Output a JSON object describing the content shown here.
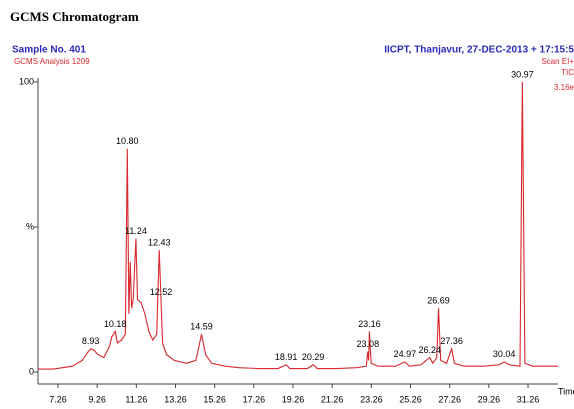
{
  "chart_data": {
    "type": "line",
    "title": "GCMS Chromatogram",
    "sample": "Sample No. 401",
    "analysis": "GCMS Analysis 1209",
    "source": "IICPT, Thanjavur,  27-DEC-2013 + 17:15:5",
    "scan": "Scan EI+",
    "tic": "TIC",
    "intensity": "3.16e",
    "xlabel": "Time",
    "x": [
      6.24,
      7.0,
      7.5,
      8.0,
      8.5,
      8.8,
      8.93,
      9.1,
      9.3,
      9.6,
      9.9,
      10.0,
      10.18,
      10.3,
      10.5,
      10.7,
      10.8,
      10.88,
      10.95,
      11.02,
      11.1,
      11.24,
      11.32,
      11.5,
      11.7,
      11.9,
      12.1,
      12.3,
      12.43,
      12.52,
      12.6,
      12.8,
      13.2,
      13.8,
      14.3,
      14.59,
      14.8,
      15.1,
      15.8,
      16.5,
      17.5,
      18.5,
      18.91,
      19.1,
      20.0,
      20.29,
      20.5,
      21.5,
      22.5,
      23.0,
      23.08,
      23.12,
      23.16,
      23.25,
      23.6,
      24.5,
      24.97,
      25.2,
      25.8,
      26.24,
      26.4,
      26.6,
      26.69,
      26.8,
      27.1,
      27.36,
      27.5,
      28.0,
      29.0,
      29.8,
      30.04,
      30.3,
      30.85,
      30.97,
      31.1,
      31.5,
      32.0,
      32.79
    ],
    "series": [
      {
        "name": "TIC",
        "color": "#d8272d",
        "values": [
          1,
          1,
          1.5,
          2,
          4,
          7,
          8,
          7.5,
          6,
          5,
          9,
          12,
          14,
          10,
          11,
          13,
          77,
          20,
          38,
          22,
          25,
          46,
          25,
          24,
          20,
          14,
          11,
          13,
          42,
          25,
          10,
          6,
          4,
          3,
          4,
          13,
          6,
          3,
          2,
          1.5,
          1.2,
          1.2,
          2.5,
          1.2,
          1.2,
          2.5,
          1.2,
          1.2,
          1.5,
          2,
          7,
          4,
          14,
          3,
          2,
          2,
          3.5,
          2,
          2.5,
          5,
          3,
          5,
          22,
          4,
          3,
          8,
          3,
          2,
          2,
          2.5,
          3.5,
          2.5,
          2,
          100,
          3,
          2,
          2,
          2
        ]
      }
    ],
    "annotations": [
      {
        "text": "8.93",
        "x": 8.93,
        "y": 8
      },
      {
        "text": "10.18",
        "x": 10.18,
        "y": 14
      },
      {
        "text": "10.80",
        "x": 10.8,
        "y": 77
      },
      {
        "text": "11.24",
        "x": 11.24,
        "y": 46
      },
      {
        "text": "12.43",
        "x": 12.43,
        "y": 42
      },
      {
        "text": "12.52",
        "x": 12.52,
        "y": 25
      },
      {
        "text": "14.59",
        "x": 14.59,
        "y": 13
      },
      {
        "text": "18.91",
        "x": 18.91,
        "y": 2.5
      },
      {
        "text": "20.29",
        "x": 20.29,
        "y": 2.5
      },
      {
        "text": "23.08",
        "x": 23.08,
        "y": 7
      },
      {
        "text": "23.16",
        "x": 23.16,
        "y": 14
      },
      {
        "text": "24.97",
        "x": 24.97,
        "y": 3.5
      },
      {
        "text": "26.24",
        "x": 26.24,
        "y": 5
      },
      {
        "text": "26.69",
        "x": 26.69,
        "y": 22
      },
      {
        "text": "27.36",
        "x": 27.36,
        "y": 8
      },
      {
        "text": "30.04",
        "x": 30.04,
        "y": 3.5
      },
      {
        "text": "30.97",
        "x": 30.97,
        "y": 100
      }
    ],
    "xlim": [
      6.24,
      32.79
    ],
    "xticks": [
      7.26,
      9.26,
      11.26,
      13.26,
      15.26,
      17.26,
      19.26,
      21.26,
      23.26,
      25.26,
      27.26,
      29.26,
      31.26
    ],
    "ylim": [
      0,
      100
    ],
    "yticks": [
      0,
      {
        "value": 50,
        "label": "%"
      },
      100
    ]
  }
}
